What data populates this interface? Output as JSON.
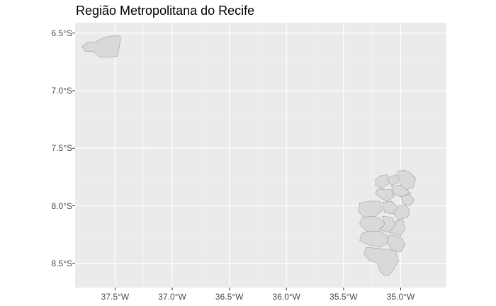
{
  "chart_data": {
    "type": "map",
    "title": "Região Metropolitana do Recife",
    "xlabel": "",
    "ylabel": "",
    "x_ticks": [
      {
        "value": -37.5,
        "label": "37.5°W"
      },
      {
        "value": -37.0,
        "label": "37.0°W"
      },
      {
        "value": -36.5,
        "label": "36.5°W"
      },
      {
        "value": -36.0,
        "label": "36.0°W"
      },
      {
        "value": -35.5,
        "label": "35.5°W"
      },
      {
        "value": -35.0,
        "label": "35.0°W"
      }
    ],
    "y_ticks": [
      {
        "value": -6.5,
        "label": "6.5°S"
      },
      {
        "value": -7.0,
        "label": "7.0°S"
      },
      {
        "value": -7.5,
        "label": "7.5°S"
      },
      {
        "value": -8.0,
        "label": "8.0°S"
      },
      {
        "value": -8.5,
        "label": "8.5°S"
      }
    ],
    "xlim": [
      -37.85,
      -34.6
    ],
    "ylim": [
      -8.71,
      -6.41
    ],
    "grid": true,
    "colors": {
      "panel_background": "#ebebeb",
      "grid_major": "#ffffff",
      "grid_minor": "#f4f4f4",
      "region_fill": "#d9d9d9",
      "region_border": "#a0a0a0"
    },
    "regions": [
      {
        "coords": [
          [
            -37.79,
            -6.62
          ],
          [
            -37.74,
            -6.58
          ],
          [
            -37.68,
            -6.58
          ],
          [
            -37.62,
            -6.55
          ],
          [
            -37.56,
            -6.53
          ],
          [
            -37.48,
            -6.52
          ],
          [
            -37.45,
            -6.54
          ],
          [
            -37.46,
            -6.6
          ],
          [
            -37.47,
            -6.66
          ],
          [
            -37.48,
            -6.7
          ],
          [
            -37.54,
            -6.71
          ],
          [
            -37.63,
            -6.71
          ],
          [
            -37.69,
            -6.66
          ],
          [
            -37.76,
            -6.66
          ]
        ]
      },
      {
        "coords": [
          [
            -35.1,
            -7.75
          ],
          [
            -35.04,
            -7.73
          ],
          [
            -35.02,
            -7.8
          ],
          [
            -35.08,
            -7.82
          ],
          [
            -35.12,
            -7.78
          ]
        ]
      },
      {
        "coords": [
          [
            -35.03,
            -7.7
          ],
          [
            -34.97,
            -7.69
          ],
          [
            -34.92,
            -7.71
          ],
          [
            -34.87,
            -7.76
          ],
          [
            -34.89,
            -7.84
          ],
          [
            -34.95,
            -7.86
          ],
          [
            -35.0,
            -7.82
          ],
          [
            -35.02,
            -7.75
          ]
        ]
      },
      {
        "coords": [
          [
            -35.22,
            -7.77
          ],
          [
            -35.18,
            -7.74
          ],
          [
            -35.12,
            -7.73
          ],
          [
            -35.1,
            -7.8
          ],
          [
            -35.16,
            -7.85
          ],
          [
            -35.22,
            -7.82
          ]
        ]
      },
      {
        "coords": [
          [
            -35.08,
            -7.83
          ],
          [
            -35.0,
            -7.82
          ],
          [
            -34.95,
            -7.86
          ],
          [
            -34.91,
            -7.89
          ],
          [
            -35.0,
            -7.92
          ],
          [
            -35.06,
            -7.9
          ]
        ]
      },
      {
        "coords": [
          [
            -35.2,
            -7.85
          ],
          [
            -35.14,
            -7.86
          ],
          [
            -35.08,
            -7.86
          ],
          [
            -35.06,
            -7.92
          ],
          [
            -35.12,
            -7.96
          ],
          [
            -35.18,
            -7.93
          ],
          [
            -35.22,
            -7.89
          ]
        ]
      },
      {
        "coords": [
          [
            -35.0,
            -7.92
          ],
          [
            -34.92,
            -7.9
          ],
          [
            -34.88,
            -7.95
          ],
          [
            -34.92,
            -8.0
          ],
          [
            -34.98,
            -7.98
          ]
        ]
      },
      {
        "coords": [
          [
            -35.36,
            -7.98
          ],
          [
            -35.28,
            -7.96
          ],
          [
            -35.18,
            -7.96
          ],
          [
            -35.16,
            -8.04
          ],
          [
            -35.22,
            -8.09
          ],
          [
            -35.32,
            -8.1
          ],
          [
            -35.37,
            -8.05
          ]
        ]
      },
      {
        "coords": [
          [
            -35.16,
            -7.97
          ],
          [
            -35.08,
            -7.96
          ],
          [
            -35.02,
            -8.02
          ],
          [
            -35.06,
            -8.07
          ],
          [
            -35.14,
            -8.06
          ]
        ]
      },
      {
        "coords": [
          [
            -35.02,
            -8.0
          ],
          [
            -34.96,
            -7.99
          ],
          [
            -34.92,
            -8.04
          ],
          [
            -34.94,
            -8.1
          ],
          [
            -35.02,
            -8.12
          ],
          [
            -35.06,
            -8.07
          ]
        ]
      },
      {
        "coords": [
          [
            -35.34,
            -8.1
          ],
          [
            -35.24,
            -8.09
          ],
          [
            -35.18,
            -8.11
          ],
          [
            -35.14,
            -8.16
          ],
          [
            -35.2,
            -8.22
          ],
          [
            -35.3,
            -8.22
          ],
          [
            -35.36,
            -8.16
          ]
        ]
      },
      {
        "coords": [
          [
            -35.16,
            -8.09
          ],
          [
            -35.08,
            -8.1
          ],
          [
            -35.04,
            -8.16
          ],
          [
            -35.1,
            -8.23
          ],
          [
            -35.18,
            -8.21
          ],
          [
            -35.14,
            -8.16
          ]
        ]
      },
      {
        "coords": [
          [
            -35.04,
            -8.13
          ],
          [
            -34.98,
            -8.12
          ],
          [
            -34.96,
            -8.2
          ],
          [
            -35.0,
            -8.26
          ],
          [
            -35.06,
            -8.24
          ],
          [
            -35.1,
            -8.23
          ],
          [
            -35.05,
            -8.17
          ]
        ]
      },
      {
        "coords": [
          [
            -35.34,
            -8.24
          ],
          [
            -35.28,
            -8.22
          ],
          [
            -35.18,
            -8.22
          ],
          [
            -35.12,
            -8.26
          ],
          [
            -35.1,
            -8.32
          ],
          [
            -35.18,
            -8.36
          ],
          [
            -35.28,
            -8.34
          ],
          [
            -35.36,
            -8.3
          ]
        ]
      },
      {
        "coords": [
          [
            -35.1,
            -8.25
          ],
          [
            -35.0,
            -8.27
          ],
          [
            -34.96,
            -8.34
          ],
          [
            -35.0,
            -8.4
          ],
          [
            -35.08,
            -8.38
          ],
          [
            -35.12,
            -8.32
          ]
        ]
      },
      {
        "coords": [
          [
            -35.3,
            -8.36
          ],
          [
            -35.2,
            -8.37
          ],
          [
            -35.1,
            -8.38
          ],
          [
            -35.04,
            -8.4
          ],
          [
            -35.02,
            -8.48
          ],
          [
            -35.06,
            -8.55
          ],
          [
            -35.1,
            -8.6
          ],
          [
            -35.14,
            -8.61
          ],
          [
            -35.18,
            -8.57
          ],
          [
            -35.2,
            -8.5
          ],
          [
            -35.28,
            -8.47
          ],
          [
            -35.32,
            -8.42
          ]
        ]
      }
    ]
  }
}
